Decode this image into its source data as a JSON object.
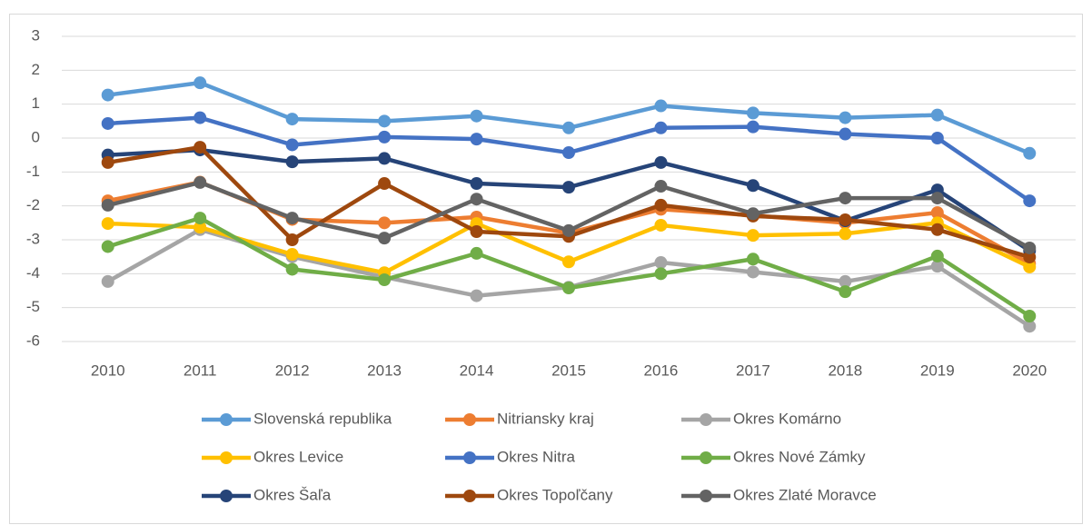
{
  "chart_data": {
    "type": "line",
    "categories": [
      "2010",
      "2011",
      "2012",
      "2013",
      "2014",
      "2015",
      "2016",
      "2017",
      "2018",
      "2019",
      "2020"
    ],
    "ylim": [
      -6,
      3
    ],
    "yticks": [
      -6,
      -5,
      -4,
      -3,
      -2,
      -1,
      0,
      1,
      2,
      3
    ],
    "grid": true,
    "legend": "bottom",
    "series": [
      {
        "name": "Slovenská republika",
        "color": "#5b9bd5",
        "values": [
          1.27,
          1.63,
          0.56,
          0.5,
          0.65,
          0.3,
          0.95,
          0.74,
          0.6,
          0.68,
          -0.45
        ]
      },
      {
        "name": "Nitriansky kraj",
        "color": "#ed7d31",
        "values": [
          -1.85,
          -1.3,
          -2.4,
          -2.5,
          -2.33,
          -2.8,
          -2.1,
          -2.28,
          -2.5,
          -2.2,
          -3.7
        ]
      },
      {
        "name": "Okres Komárno",
        "color": "#a5a5a5",
        "values": [
          -4.23,
          -2.7,
          -3.5,
          -4.1,
          -4.65,
          -4.4,
          -3.67,
          -3.95,
          -4.23,
          -3.78,
          -5.55
        ]
      },
      {
        "name": "Okres Levice",
        "color": "#ffc000",
        "values": [
          -2.52,
          -2.63,
          -3.43,
          -3.97,
          -2.52,
          -3.65,
          -2.57,
          -2.87,
          -2.82,
          -2.5,
          -3.8
        ]
      },
      {
        "name": "Okres Nitra",
        "color": "#4472c4",
        "values": [
          0.43,
          0.6,
          -0.2,
          0.03,
          -0.03,
          -0.43,
          0.3,
          0.33,
          0.12,
          0,
          -1.85
        ]
      },
      {
        "name": "Okres Nové Zámky",
        "color": "#70ad47",
        "values": [
          -3.2,
          -2.36,
          -3.87,
          -4.18,
          -3.4,
          -4.42,
          -4,
          -3.57,
          -4.53,
          -3.48,
          -5.25
        ]
      },
      {
        "name": "Okres Šaľa",
        "color": "#264478",
        "values": [
          -0.5,
          -0.35,
          -0.7,
          -0.6,
          -1.34,
          -1.45,
          -0.72,
          -1.4,
          -2.44,
          -1.53,
          -3.32
        ]
      },
      {
        "name": "Okres Topoľčany",
        "color": "#9e480e",
        "values": [
          -0.72,
          -0.27,
          -3,
          -1.34,
          -2.76,
          -2.9,
          -1.98,
          -2.3,
          -2.41,
          -2.7,
          -3.51
        ]
      },
      {
        "name": "Okres Zlaté Moravce",
        "color": "#636363",
        "values": [
          -1.98,
          -1.31,
          -2.36,
          -2.95,
          -1.8,
          -2.73,
          -1.42,
          -2.23,
          -1.77,
          -1.77,
          -3.24
        ]
      }
    ]
  }
}
